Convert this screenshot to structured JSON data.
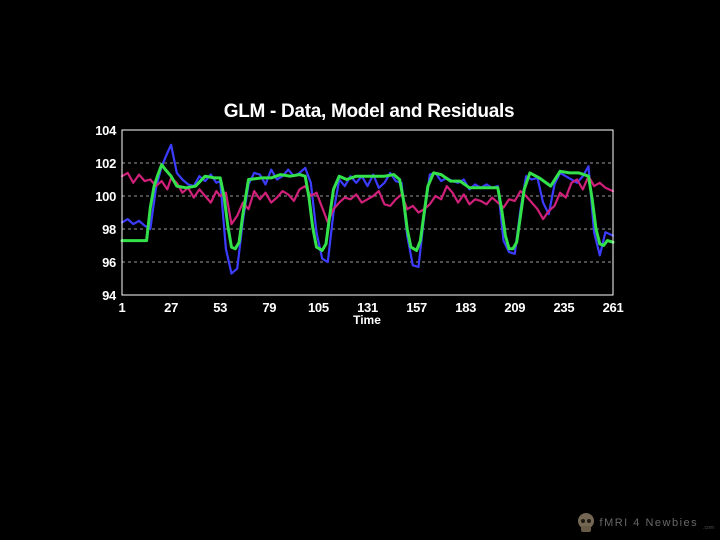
{
  "chart_data": {
    "type": "line",
    "title": "GLM - Data, Model and Residuals",
    "xlabel": "Time",
    "ylabel": "",
    "xlim": [
      1,
      261
    ],
    "ylim": [
      94,
      104
    ],
    "xticks": [
      1,
      27,
      53,
      79,
      105,
      131,
      157,
      183,
      209,
      235,
      261
    ],
    "yticks": [
      94,
      96,
      98,
      100,
      102,
      104
    ],
    "grid": "horizontal dashed",
    "series": [
      {
        "color": "#3c3cff",
        "x": [
          1,
          4,
          7,
          10,
          13,
          16,
          19,
          22,
          25,
          27,
          30,
          33,
          36,
          39,
          42,
          45,
          48,
          51,
          53,
          56,
          59,
          62,
          65,
          68,
          71,
          74,
          77,
          80,
          83,
          86,
          89,
          92,
          95,
          98,
          101,
          104,
          107,
          110,
          113,
          116,
          119,
          122,
          125,
          128,
          131,
          134,
          137,
          140,
          143,
          146,
          149,
          152,
          155,
          158,
          161,
          164,
          167,
          170,
          173,
          176,
          179,
          182,
          185,
          188,
          191,
          194,
          197,
          200,
          203,
          206,
          209,
          212,
          215,
          218,
          221,
          224,
          227,
          230,
          233,
          236,
          239,
          242,
          245,
          248,
          251,
          254,
          257,
          261
        ],
        "values": [
          98.4,
          98.6,
          98.3,
          98.5,
          98.2,
          98.0,
          100.5,
          101.8,
          102.6,
          103.1,
          101.4,
          101.0,
          100.7,
          100.6,
          101.2,
          100.9,
          101.3,
          100.8,
          100.9,
          96.8,
          95.3,
          95.6,
          98.5,
          100.7,
          101.4,
          101.3,
          100.7,
          101.6,
          101.0,
          101.2,
          101.6,
          101.2,
          101.4,
          101.7,
          100.8,
          97.8,
          96.2,
          96.0,
          99.0,
          101.0,
          100.6,
          101.2,
          100.8,
          101.2,
          100.6,
          101.3,
          100.5,
          100.8,
          101.4,
          100.9,
          100.8,
          97.6,
          95.8,
          95.7,
          98.8,
          101.3,
          101.4,
          100.9,
          101.1,
          100.9,
          100.8,
          101.0,
          100.4,
          100.7,
          100.5,
          100.7,
          100.5,
          100.6,
          97.3,
          96.6,
          96.5,
          99.2,
          101.2,
          101.0,
          101.1,
          99.6,
          98.9,
          100.7,
          101.4,
          101.2,
          101.0,
          100.8,
          101.2,
          101.8,
          97.8,
          96.4,
          97.8,
          97.6
        ]
      },
      {
        "color": "#d0207a",
        "x": [
          1,
          4,
          7,
          10,
          13,
          16,
          19,
          22,
          25,
          27,
          30,
          33,
          36,
          39,
          42,
          45,
          48,
          51,
          53,
          56,
          59,
          62,
          65,
          68,
          71,
          74,
          77,
          80,
          83,
          86,
          89,
          92,
          95,
          98,
          101,
          104,
          107,
          110,
          113,
          116,
          119,
          122,
          125,
          128,
          131,
          134,
          137,
          140,
          143,
          146,
          149,
          152,
          155,
          158,
          161,
          164,
          167,
          170,
          173,
          176,
          179,
          182,
          185,
          188,
          191,
          194,
          197,
          200,
          203,
          206,
          209,
          212,
          215,
          218,
          221,
          224,
          227,
          230,
          233,
          236,
          239,
          242,
          245,
          248,
          251,
          254,
          257,
          261
        ],
        "values": [
          101.2,
          101.4,
          100.8,
          101.3,
          100.9,
          101.0,
          100.6,
          100.9,
          100.4,
          101.1,
          100.8,
          100.2,
          100.5,
          99.9,
          100.4,
          100.0,
          99.6,
          100.3,
          100.0,
          100.2,
          98.3,
          98.8,
          99.6,
          99.2,
          100.3,
          99.8,
          100.2,
          99.6,
          99.9,
          100.3,
          100.1,
          99.7,
          100.4,
          100.6,
          100.0,
          100.2,
          99.3,
          98.4,
          99.2,
          99.6,
          99.9,
          99.8,
          100.1,
          99.6,
          99.8,
          100.0,
          100.3,
          99.5,
          99.4,
          99.8,
          100.1,
          99.2,
          99.4,
          99.0,
          99.2,
          99.5,
          100.0,
          99.8,
          100.6,
          100.2,
          99.6,
          100.1,
          99.5,
          99.8,
          99.7,
          99.5,
          99.9,
          99.6,
          99.3,
          99.8,
          99.7,
          100.3,
          100.0,
          99.6,
          99.2,
          98.6,
          99.1,
          99.4,
          100.2,
          99.9,
          100.8,
          101.0,
          100.4,
          101.2,
          100.6,
          100.8,
          100.5,
          100.3
        ]
      },
      {
        "color": "#33e24a",
        "x": [
          1,
          14,
          16,
          18,
          20,
          22,
          24,
          27,
          30,
          35,
          40,
          45,
          50,
          53,
          55,
          57,
          59,
          61,
          63,
          65,
          68,
          75,
          80,
          85,
          90,
          95,
          98,
          100,
          102,
          104,
          107,
          109,
          111,
          113,
          116,
          120,
          125,
          131,
          140,
          145,
          148,
          150,
          152,
          154,
          157,
          159,
          161,
          163,
          166,
          170,
          175,
          180,
          185,
          192,
          200,
          202,
          204,
          206,
          208,
          210,
          212,
          214,
          217,
          222,
          228,
          233,
          238,
          243,
          248,
          250,
          252,
          254,
          256,
          258,
          261
        ],
        "values": [
          97.3,
          97.3,
          99.3,
          100.6,
          101.3,
          101.9,
          101.6,
          101.2,
          100.6,
          100.5,
          100.6,
          101.2,
          101.1,
          101.1,
          100.0,
          98.2,
          96.9,
          96.8,
          97.2,
          98.9,
          101.0,
          101.1,
          101.1,
          101.3,
          101.2,
          101.3,
          101.2,
          99.9,
          98.1,
          96.9,
          96.7,
          97.1,
          98.8,
          100.4,
          101.2,
          101.0,
          101.2,
          101.2,
          101.2,
          101.3,
          101.0,
          99.8,
          98.0,
          96.9,
          96.7,
          97.3,
          99.0,
          100.6,
          101.4,
          101.3,
          100.9,
          100.9,
          100.5,
          100.5,
          100.5,
          99.2,
          97.6,
          96.8,
          96.8,
          97.2,
          98.8,
          100.4,
          101.4,
          101.1,
          100.6,
          101.5,
          101.4,
          101.4,
          101.2,
          99.8,
          98.0,
          97.1,
          97.0,
          97.3,
          97.2
        ]
      }
    ]
  },
  "watermark": {
    "text": "fMRI 4 Newbies",
    "sub": ".com",
    "icon": "skull-icon"
  }
}
